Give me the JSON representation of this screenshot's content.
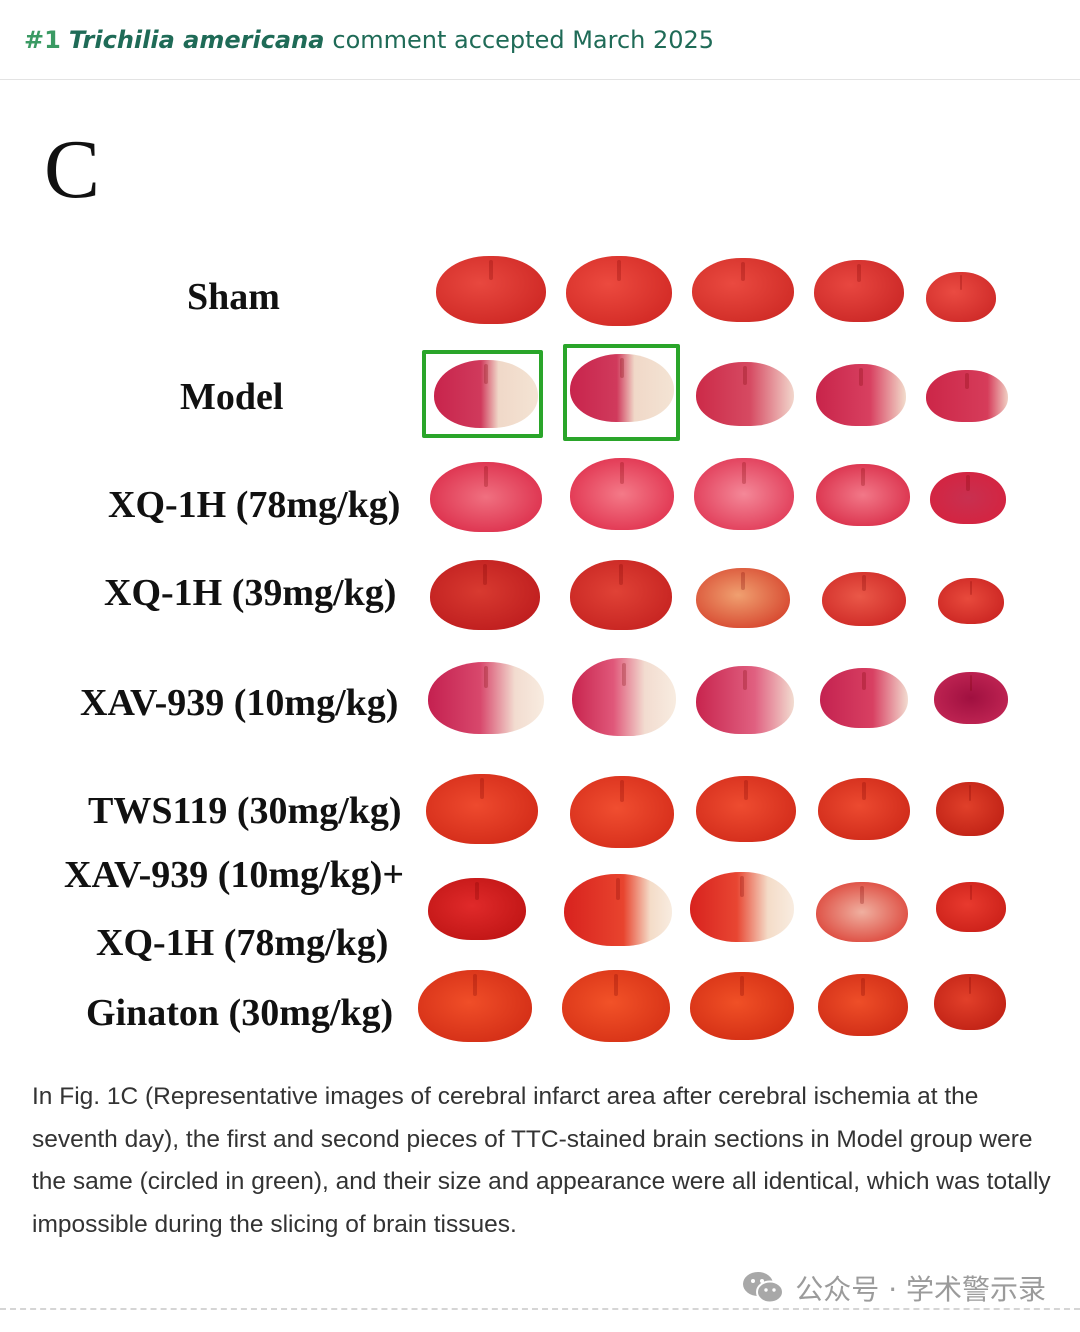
{
  "header": {
    "number": "#1",
    "species": "Trichilia americana",
    "text": "comment accepted March 2025"
  },
  "figure": {
    "panel_letter": "C",
    "rows": [
      {
        "label": "Sham"
      },
      {
        "label": "Model"
      },
      {
        "label": "XQ-1H (78mg/kg)"
      },
      {
        "label": "XQ-1H (39mg/kg)"
      },
      {
        "label": "XAV-939 (10mg/kg)"
      },
      {
        "label": "TWS119 (30mg/kg)"
      },
      {
        "label": "XAV-939 (10mg/kg)+"
      },
      {
        "label": "XQ-1H (78mg/kg)"
      },
      {
        "label": "Ginaton (30mg/kg)"
      }
    ],
    "highlight_color": "#2aa52a"
  },
  "caption": "In Fig. 1C (Representative images of cerebral infarct area after cerebral ischemia at the seventh day), the first and second pieces of TTC-stained brain sections in Model group were the same (circled in green), and their size and appearance were all identical, which was totally impossible during the slicing of brain tissues.",
  "watermark": {
    "text": "公众号 · 学术警示录",
    "icon": "wechat-icon"
  }
}
